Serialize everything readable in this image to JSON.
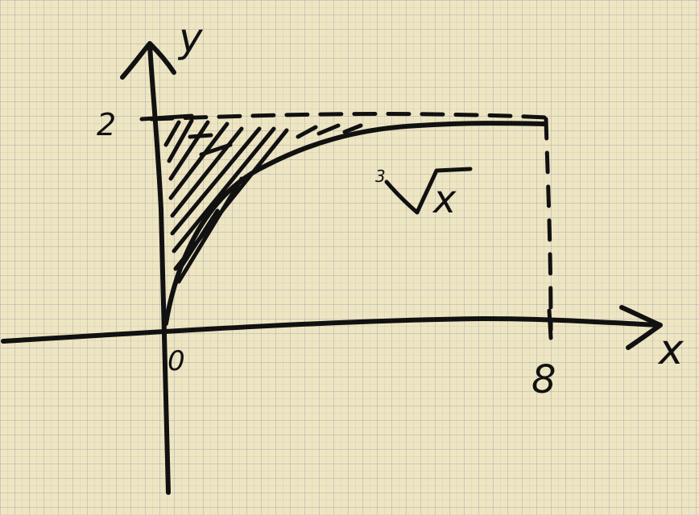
{
  "axes": {
    "x_label": "x",
    "y_label": "y",
    "origin_label": "0",
    "x_tick_label": "8",
    "y_tick_label": "2"
  },
  "curve": {
    "label_radical": "3",
    "label_radicand": "x"
  },
  "colors": {
    "paper": "#ede6c2",
    "ink": "#111111"
  }
}
